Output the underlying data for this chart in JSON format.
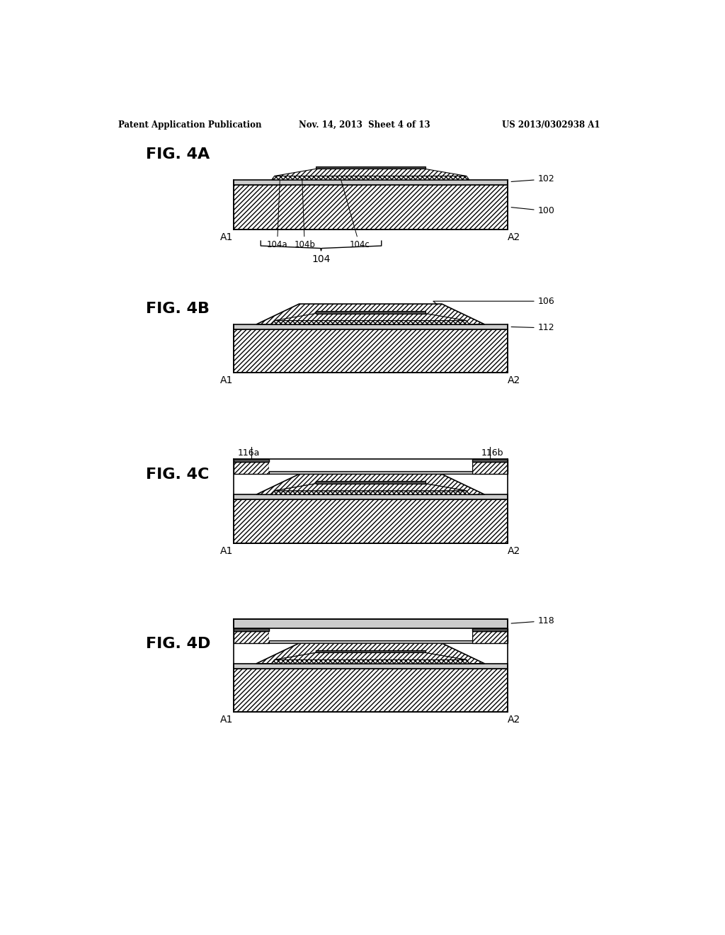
{
  "bg_color": "#ffffff",
  "header_left": "Patent Application Publication",
  "header_mid": "Nov. 14, 2013  Sheet 4 of 13",
  "header_right": "US 2013/0302938 A1",
  "line_color": "#000000"
}
